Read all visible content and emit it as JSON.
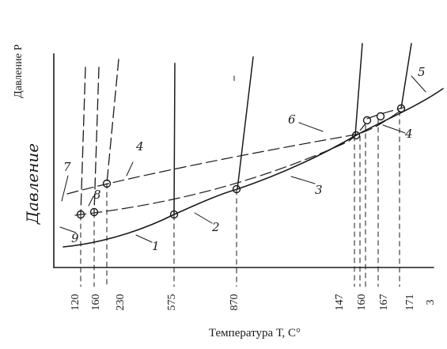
{
  "labels": {
    "y_axis": "Давление  Р",
    "y_axis_handwritten": "Давление",
    "x_axis": "Температура Т, С°"
  },
  "x_ticks": [
    "120",
    "160",
    "230",
    "575",
    "870",
    "147",
    "160",
    "167",
    "171",
    "3"
  ],
  "curve_numbers": [
    "1",
    "2",
    "3",
    "4",
    "5",
    "6",
    "7",
    "8",
    "9",
    "4"
  ]
}
